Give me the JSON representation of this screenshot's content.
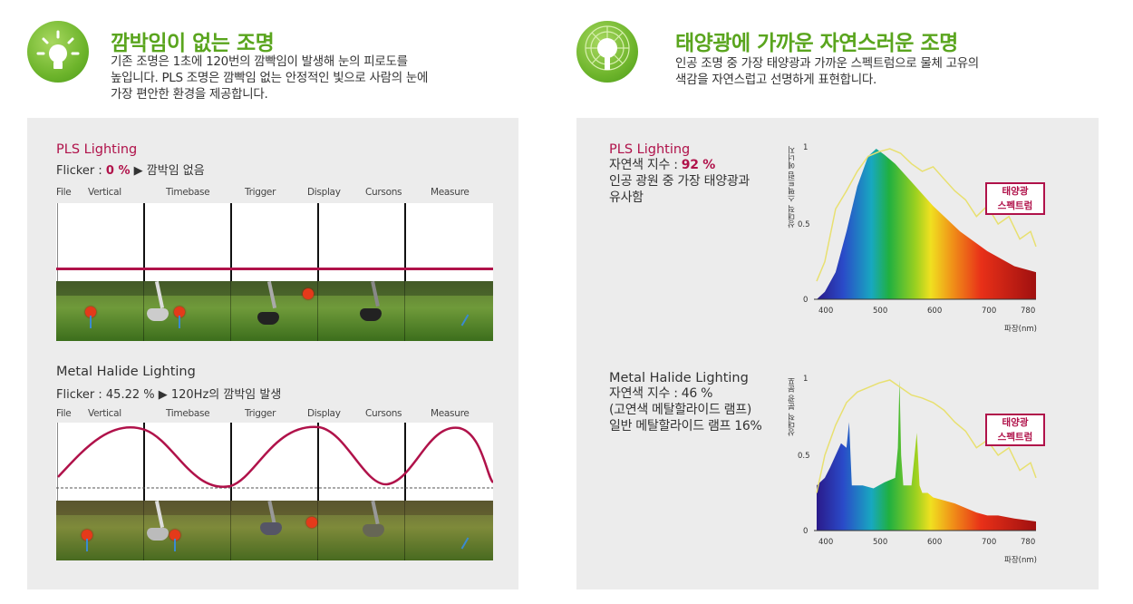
{
  "left_header": {
    "icon": "lightbulb-icon",
    "title": "깜박임이 없는 조명",
    "desc_line1": "기존 조명은 1초에 120번의 깜빡임이 발생해 눈의 피로도를",
    "desc_line2": "높입니다. PLS 조명은 깜빡임 없는 안정적인 빛으로 사람의 눈에",
    "desc_line3": "가장 편안한 환경을 제공합니다."
  },
  "right_header": {
    "icon": "sun-bulb-icon",
    "title": "태양광에 가까운 자연스러운 조명",
    "desc_line1": "인공 조명 중 가장 태양광과 가까운 스펙트럼으로 물체 고유의",
    "desc_line2": "색감을 자연스럽고 선명하게 표현합니다."
  },
  "oscilloscope_toolbar": [
    "File",
    "Vertical",
    "Timebase",
    "Trigger",
    "Display",
    "Cursons",
    "Measure"
  ],
  "pls_flicker": {
    "title": "PLS Lighting",
    "flicker_prefix": "Flicker : ",
    "flicker_value": "0 %",
    "flicker_suffix": " ▶ 깜박임 없음",
    "waveform": "flat"
  },
  "mh_flicker": {
    "title": "Metal Halide Lighting",
    "flicker_prefix": "Flicker : ",
    "flicker_value": "45.22 %",
    "flicker_suffix": " ▶ 120Hz의 깜박임 발생",
    "waveform": "sine"
  },
  "pls_spectrum": {
    "title": "PLS Lighting",
    "cri_prefix": "자연색 지수 : ",
    "cri_value": "92 %",
    "line2": "인공 광원 중 가장 태양광과",
    "line3": "유사함",
    "legend_line1": "태양광",
    "legend_line2": "스펙트럼"
  },
  "mh_spectrum": {
    "title": "Metal Halide Lighting",
    "line1": "자연색 지수  : 46 %",
    "line2": "(고연색 메탈할라이드 램프)",
    "line3": "일반 메탈할라이드 램프 16%",
    "legend_line1": "태양광",
    "legend_line2": "스펙트럼"
  },
  "chart_axes": {
    "pls_ylabel": "상대적 스펙트럼 에너지",
    "mh_ylabel": "상대적 분광 분포",
    "yticks": [
      "1",
      "0.5",
      "0"
    ],
    "xticks": [
      "400",
      "500",
      "600",
      "700",
      "780"
    ],
    "xlabel": "파장(nm)"
  },
  "chart_data": [
    {
      "type": "area",
      "title": "",
      "xlabel": "파장(nm)",
      "ylabel": "상대적 스펙트럼 에너지",
      "xlim": [
        380,
        790
      ],
      "ylim": [
        0,
        1
      ],
      "series": [
        {
          "name": "PLS Lighting",
          "x": [
            385,
            400,
            420,
            440,
            460,
            480,
            495,
            510,
            530,
            560,
            600,
            650,
            700,
            750,
            790
          ],
          "values": [
            0.0,
            0.05,
            0.18,
            0.45,
            0.75,
            0.95,
            1.0,
            0.96,
            0.9,
            0.78,
            0.62,
            0.45,
            0.32,
            0.22,
            0.18
          ]
        },
        {
          "name": "태양광 스펙트럼",
          "x": [
            385,
            400,
            420,
            440,
            460,
            480,
            500,
            520,
            540,
            560,
            580,
            600,
            620,
            640,
            660,
            680,
            700,
            720,
            740,
            760,
            780,
            790
          ],
          "values": [
            0.12,
            0.25,
            0.6,
            0.72,
            0.85,
            0.95,
            0.98,
            1.0,
            0.97,
            0.9,
            0.85,
            0.88,
            0.8,
            0.72,
            0.66,
            0.55,
            0.62,
            0.5,
            0.55,
            0.4,
            0.45,
            0.35
          ]
        }
      ]
    },
    {
      "type": "area",
      "title": "",
      "xlabel": "파장(nm)",
      "ylabel": "상대적 분광 분포",
      "xlim": [
        380,
        790
      ],
      "ylim": [
        0,
        1
      ],
      "series": [
        {
          "name": "Metal Halide Lighting",
          "x": [
            385,
            400,
            410,
            420,
            430,
            440,
            445,
            450,
            470,
            490,
            510,
            530,
            535,
            538,
            541,
            545,
            560,
            570,
            575,
            580,
            590,
            600,
            620,
            640,
            660,
            680,
            700,
            720,
            750,
            790
          ],
          "values": [
            0.3,
            0.35,
            0.42,
            0.5,
            0.58,
            0.55,
            0.72,
            0.3,
            0.3,
            0.28,
            0.32,
            0.35,
            0.55,
            1.0,
            0.5,
            0.3,
            0.3,
            0.65,
            0.3,
            0.25,
            0.25,
            0.22,
            0.2,
            0.18,
            0.15,
            0.12,
            0.1,
            0.1,
            0.08,
            0.06
          ]
        },
        {
          "name": "태양광 스펙트럼",
          "x": [
            385,
            400,
            420,
            440,
            460,
            480,
            500,
            520,
            540,
            560,
            580,
            600,
            620,
            640,
            660,
            680,
            700,
            720,
            740,
            760,
            780,
            790
          ],
          "values": [
            0.25,
            0.5,
            0.7,
            0.85,
            0.92,
            0.95,
            0.98,
            1.0,
            0.95,
            0.9,
            0.88,
            0.85,
            0.8,
            0.72,
            0.66,
            0.55,
            0.6,
            0.5,
            0.55,
            0.4,
            0.45,
            0.35
          ]
        }
      ]
    }
  ]
}
